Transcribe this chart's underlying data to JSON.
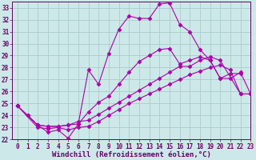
{
  "background_color": "#cde8e8",
  "grid_color": "#aacccc",
  "line_color": "#aa00aa",
  "xlim": [
    -0.5,
    23
  ],
  "ylim": [
    22,
    33.5
  ],
  "xlabel": "Windchill (Refroidissement éolien,°C)",
  "yticks": [
    22,
    23,
    24,
    25,
    26,
    27,
    28,
    29,
    30,
    31,
    32,
    33
  ],
  "xticks": [
    0,
    1,
    2,
    3,
    4,
    5,
    6,
    7,
    8,
    9,
    10,
    11,
    12,
    13,
    14,
    15,
    16,
    17,
    18,
    19,
    20,
    21,
    22,
    23
  ],
  "series1_x": [
    0,
    1,
    2,
    3,
    4,
    5,
    6,
    7,
    8,
    9,
    10,
    11,
    12,
    13,
    14,
    15,
    16,
    17,
    18,
    19,
    20,
    21,
    22
  ],
  "series1_y": [
    24.8,
    24.0,
    23.2,
    22.6,
    22.8,
    22.1,
    23.3,
    27.8,
    26.6,
    29.2,
    31.2,
    32.3,
    32.1,
    32.1,
    33.3,
    33.4,
    31.6,
    31.0,
    29.5,
    28.6,
    27.1,
    27.5,
    27.5
  ],
  "series2_x": [
    0,
    1,
    2,
    3,
    4,
    5,
    6,
    7,
    8,
    9,
    10,
    11,
    12,
    13,
    14,
    15,
    16,
    17,
    18,
    19,
    20,
    21,
    22,
    23
  ],
  "series2_y": [
    24.8,
    24.0,
    23.2,
    23.1,
    23.1,
    23.2,
    23.3,
    24.3,
    25.1,
    25.6,
    26.6,
    27.6,
    28.5,
    29.0,
    29.5,
    29.6,
    28.3,
    28.6,
    28.9,
    28.6,
    27.1,
    27.1,
    27.6,
    25.8
  ],
  "series3_x": [
    0,
    2,
    3,
    4,
    5,
    6,
    7,
    8,
    9,
    10,
    11,
    12,
    13,
    14,
    15,
    16,
    17,
    18,
    19,
    20,
    22,
    23
  ],
  "series3_y": [
    24.8,
    23.2,
    23.1,
    23.1,
    23.2,
    23.5,
    23.6,
    24.1,
    24.6,
    25.1,
    25.6,
    26.1,
    26.6,
    27.1,
    27.6,
    28.1,
    28.1,
    28.6,
    28.9,
    28.6,
    25.8,
    25.8
  ],
  "series4_x": [
    0,
    2,
    3,
    4,
    5,
    6,
    7,
    8,
    9,
    10,
    11,
    12,
    13,
    14,
    15,
    16,
    17,
    18,
    19,
    20,
    21,
    22,
    23
  ],
  "series4_y": [
    24.8,
    23.0,
    22.9,
    23.0,
    22.8,
    23.0,
    23.1,
    23.5,
    24.0,
    24.5,
    25.0,
    25.4,
    25.8,
    26.2,
    26.6,
    27.0,
    27.4,
    27.7,
    28.0,
    28.2,
    27.8,
    25.8,
    25.8
  ],
  "font_color": "#660066",
  "tick_fontsize": 5.5,
  "label_fontsize": 6.5
}
